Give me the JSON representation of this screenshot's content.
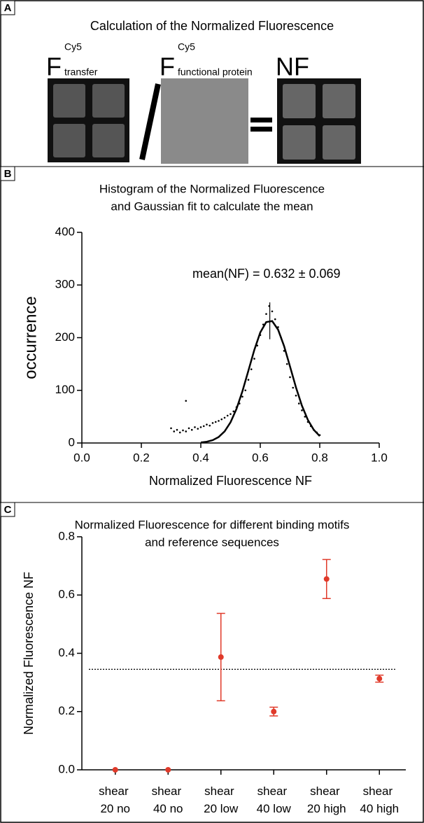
{
  "diagram": {
    "panel_label": "A",
    "title": "Calculation of the Normalized Fluorescence",
    "terms": [
      {
        "symbol": "F",
        "superscript": "Cy5",
        "subscript": "transfer"
      },
      {
        "symbol": "F",
        "superscript": "Cy5",
        "subscript": "functional protein"
      }
    ],
    "result": "NF"
  },
  "chart_data": [
    {
      "type": "scatter",
      "panel_label": "B",
      "title": "Histogram of the Normalized Fluorescence",
      "subtitle": "and Gaussian fit to calculate the mean",
      "x_label": "Normalized Fluorescence NF",
      "y_label": "occurrence",
      "annotation": "mean(NF) = 0.632 ± 0.069",
      "x": [
        0.3,
        0.31,
        0.32,
        0.33,
        0.34,
        0.35,
        0.36,
        0.37,
        0.38,
        0.39,
        0.4,
        0.41,
        0.42,
        0.43,
        0.44,
        0.45,
        0.46,
        0.47,
        0.48,
        0.49,
        0.5,
        0.51,
        0.52,
        0.53,
        0.54,
        0.55,
        0.56,
        0.57,
        0.58,
        0.59,
        0.6,
        0.61,
        0.62,
        0.63,
        0.64,
        0.65,
        0.66,
        0.67,
        0.68,
        0.69,
        0.7,
        0.71,
        0.72,
        0.73,
        0.74,
        0.75,
        0.76,
        0.77,
        0.78,
        0.79,
        0.8,
        0.35
      ],
      "values": [
        28,
        22,
        25,
        20,
        24,
        22,
        28,
        25,
        30,
        27,
        30,
        32,
        35,
        33,
        38,
        40,
        42,
        45,
        48,
        52,
        55,
        60,
        68,
        75,
        88,
        100,
        120,
        140,
        160,
        185,
        205,
        225,
        245,
        260,
        250,
        235,
        220,
        200,
        175,
        150,
        125,
        105,
        90,
        75,
        62,
        50,
        40,
        32,
        25,
        20,
        15,
        80
      ],
      "color": "#000000",
      "fit": {
        "x": [
          0.4,
          0.42,
          0.44,
          0.46,
          0.48,
          0.5,
          0.52,
          0.54,
          0.56,
          0.58,
          0.6,
          0.62,
          0.64,
          0.66,
          0.68,
          0.7,
          0.72,
          0.74,
          0.76,
          0.78,
          0.8
        ],
        "values": [
          1.0,
          2.4,
          5.4,
          11.4,
          22.0,
          39.3,
          64.8,
          98.3,
          137.3,
          176.8,
          209.9,
          229.6,
          231.5,
          215.1,
          184.2,
          145.3,
          105.7,
          70.9,
          43.9,
          24.9,
          13.1
        ]
      },
      "errorbar": {
        "x": 0.632,
        "value": 232,
        "error": 35
      },
      "xlim": [
        0,
        1
      ],
      "ylim": [
        0,
        400
      ],
      "xticks": [
        {
          "value": 0,
          "label": "0.0"
        },
        0.2,
        0.4,
        0.6,
        0.8,
        {
          "value": 1,
          "label": "1.0"
        }
      ],
      "yticks": [
        0,
        100,
        200,
        300,
        400
      ]
    },
    {
      "type": "errorbar",
      "panel_label": "C",
      "title": "Normalized Fluorescence for different binding motifs",
      "subtitle": "and reference sequences",
      "y_label": "Normalized Fluorescence NF",
      "categories": [
        "shear 20 no",
        "shear 40 no",
        "shear 20 low",
        "shear 40 low",
        "shear 20 high",
        "shear 40 high"
      ],
      "values": [
        0,
        0,
        0.387,
        0.2,
        0.655,
        0.313
      ],
      "errors": [
        0,
        0,
        0.15,
        0.015,
        0.067,
        0.012
      ],
      "reference_line": 0.345,
      "color": "#e03a2a",
      "ylim": [
        0,
        0.8
      ],
      "yticks": [
        {
          "value": 0,
          "label": "0.0"
        },
        0.2,
        0.4,
        0.6,
        0.8
      ]
    }
  ]
}
